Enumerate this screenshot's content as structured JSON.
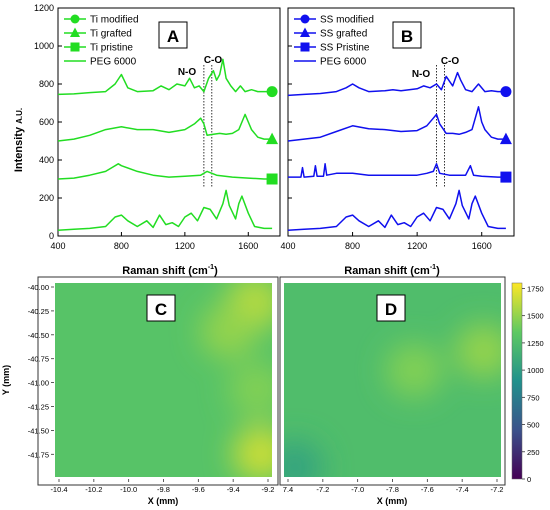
{
  "chart_data": [
    {
      "panel": "A",
      "type": "line",
      "ylabel": "Intensity",
      "ylabel_unit": "A.U.",
      "xlabel": "Raman shift (cm",
      "xlabel_sup": "-1",
      "xlabel_close": ")",
      "xlim": [
        400,
        1800
      ],
      "ylim": [
        0,
        1200
      ],
      "xticks": [
        "400",
        "800",
        "1200",
        "1600"
      ],
      "yticks": [
        "0",
        "200",
        "400",
        "600",
        "800",
        "1000",
        "1200"
      ],
      "color": "#22dd22",
      "annotations": [
        "N-O",
        "C-O"
      ],
      "vlines": [
        1320,
        1370
      ],
      "legend_position": "top-left",
      "series": [
        {
          "name": "Ti modified",
          "marker": "circle",
          "x": [
            400,
            500,
            600,
            700,
            760,
            800,
            840,
            900,
            1000,
            1050,
            1100,
            1150,
            1200,
            1230,
            1260,
            1290,
            1320,
            1350,
            1380,
            1400,
            1420,
            1440,
            1460,
            1490,
            1520,
            1550,
            1580,
            1620,
            1660,
            1700,
            1750
          ],
          "y": [
            745,
            748,
            755,
            760,
            800,
            850,
            780,
            760,
            765,
            790,
            770,
            800,
            790,
            830,
            780,
            790,
            760,
            830,
            870,
            820,
            850,
            930,
            830,
            790,
            760,
            790,
            760,
            770,
            760,
            760,
            760
          ]
        },
        {
          "name": "Ti grafted",
          "marker": "triangle",
          "x": [
            400,
            500,
            600,
            700,
            800,
            900,
            1000,
            1100,
            1200,
            1260,
            1300,
            1320,
            1340,
            1380,
            1420,
            1460,
            1500,
            1540,
            1580,
            1600,
            1620,
            1660,
            1700,
            1750
          ],
          "y": [
            500,
            510,
            530,
            560,
            575,
            560,
            560,
            545,
            560,
            590,
            620,
            590,
            530,
            535,
            540,
            535,
            540,
            560,
            640,
            600,
            560,
            520,
            510,
            510
          ]
        },
        {
          "name": "Ti pristine",
          "marker": "square",
          "x": [
            400,
            500,
            600,
            700,
            740,
            780,
            800,
            900,
            1000,
            1100,
            1200,
            1300,
            1340,
            1400,
            1500,
            1600,
            1700,
            1750
          ],
          "y": [
            300,
            305,
            320,
            340,
            360,
            380,
            370,
            340,
            320,
            310,
            315,
            320,
            340,
            320,
            310,
            305,
            300,
            300
          ]
        },
        {
          "name": "PEG 6000",
          "marker": "none",
          "x": [
            400,
            500,
            600,
            700,
            760,
            800,
            840,
            900,
            960,
            1000,
            1040,
            1080,
            1120,
            1160,
            1200,
            1240,
            1280,
            1320,
            1360,
            1400,
            1440,
            1460,
            1480,
            1520,
            1540,
            1560,
            1600,
            1640,
            1700,
            1750
          ],
          "y": [
            30,
            35,
            40,
            50,
            100,
            110,
            80,
            50,
            80,
            45,
            110,
            60,
            70,
            50,
            100,
            120,
            80,
            150,
            140,
            90,
            170,
            240,
            160,
            90,
            170,
            210,
            120,
            50,
            40,
            40
          ]
        }
      ]
    },
    {
      "panel": "B",
      "type": "line",
      "xlabel": "Raman shift (cm",
      "xlabel_sup": "-1",
      "xlabel_close": ")",
      "xlim": [
        400,
        1800
      ],
      "ylim": [
        0,
        1200
      ],
      "xticks": [
        "400",
        "800",
        "1200",
        "1600"
      ],
      "color": "#1010ee",
      "annotations": [
        "N-O",
        "C-O"
      ],
      "vlines": [
        1320,
        1370
      ],
      "legend_position": "top-left",
      "series": [
        {
          "name": "SS modified",
          "marker": "circle",
          "x": [
            400,
            500,
            600,
            700,
            760,
            800,
            840,
            900,
            1000,
            1050,
            1100,
            1150,
            1200,
            1240,
            1280,
            1320,
            1350,
            1380,
            1420,
            1450,
            1470,
            1500,
            1540,
            1580,
            1620,
            1660,
            1700,
            1750
          ],
          "y": [
            740,
            745,
            750,
            760,
            780,
            800,
            780,
            760,
            765,
            770,
            765,
            770,
            775,
            790,
            780,
            800,
            770,
            840,
            790,
            860,
            820,
            770,
            760,
            800,
            760,
            765,
            760,
            760
          ]
        },
        {
          "name": "SS grafted",
          "marker": "triangle",
          "x": [
            400,
            500,
            600,
            700,
            800,
            900,
            1000,
            1100,
            1200,
            1260,
            1300,
            1320,
            1340,
            1380,
            1420,
            1460,
            1500,
            1540,
            1580,
            1600,
            1620,
            1660,
            1700,
            1750
          ],
          "y": [
            500,
            510,
            520,
            550,
            580,
            565,
            560,
            550,
            555,
            580,
            620,
            640,
            590,
            540,
            540,
            535,
            545,
            560,
            680,
            600,
            560,
            520,
            510,
            510
          ]
        },
        {
          "name": "SS Pristine",
          "marker": "square",
          "x": [
            400,
            480,
            490,
            500,
            560,
            570,
            580,
            620,
            630,
            640,
            700,
            800,
            900,
            1000,
            1100,
            1200,
            1260,
            1300,
            1320,
            1340,
            1400,
            1500,
            1530,
            1550,
            1600,
            1700,
            1750
          ],
          "y": [
            310,
            310,
            360,
            310,
            315,
            370,
            315,
            315,
            380,
            320,
            330,
            330,
            320,
            320,
            320,
            320,
            330,
            340,
            380,
            330,
            320,
            320,
            370,
            320,
            315,
            310,
            310
          ]
        },
        {
          "name": "PEG 6000",
          "marker": "none",
          "x": [
            400,
            500,
            600,
            700,
            760,
            800,
            840,
            900,
            960,
            1000,
            1040,
            1080,
            1120,
            1160,
            1200,
            1240,
            1280,
            1320,
            1360,
            1400,
            1440,
            1460,
            1480,
            1520,
            1540,
            1560,
            1600,
            1640,
            1700,
            1750
          ],
          "y": [
            30,
            35,
            40,
            50,
            100,
            110,
            80,
            50,
            80,
            45,
            110,
            60,
            70,
            50,
            100,
            120,
            80,
            150,
            140,
            90,
            170,
            240,
            160,
            90,
            170,
            210,
            120,
            50,
            40,
            40
          ]
        }
      ]
    },
    {
      "panel": "C",
      "type": "heatmap",
      "xlabel": "X (mm)",
      "ylabel": "Y (mm)",
      "xticks": [
        "-10.4",
        "-10.2",
        "-10.0",
        "-9.8",
        "-9.6",
        "-9.4",
        "-9.2"
      ],
      "yticks": [
        "-40.00",
        "-40.25",
        "-40.50",
        "-40.75",
        "-41.00",
        "-41.25",
        "-41.50",
        "-41.75"
      ],
      "base_value": 1300,
      "hot_spots": [
        {
          "x": 0.92,
          "y": 0.1,
          "value": 1600
        },
        {
          "x": 0.8,
          "y": 0.25,
          "value": 1500
        },
        {
          "x": 0.93,
          "y": 0.55,
          "value": 1450
        },
        {
          "x": 0.95,
          "y": 0.88,
          "value": 1650
        }
      ]
    },
    {
      "panel": "D",
      "type": "heatmap",
      "xlabel": "X (mm)",
      "xticks": [
        "7.4",
        "-7.2",
        "-7.0",
        "-7.8",
        "-7.6",
        "-7.4",
        "-7.2"
      ],
      "base_value": 1250,
      "hot_spots": [
        {
          "x": 0.92,
          "y": 0.35,
          "value": 1500
        },
        {
          "x": 0.6,
          "y": 0.45,
          "value": 1450
        },
        {
          "x": 0.05,
          "y": 0.95,
          "value": 1050
        }
      ]
    }
  ],
  "colorbar": {
    "min": 0,
    "max": 1800,
    "ticks": [
      "0",
      "250",
      "500",
      "750",
      "1000",
      "1250",
      "1500",
      "1750"
    ],
    "colors": [
      "#440154",
      "#3b528b",
      "#21918c",
      "#5ec962",
      "#fde725"
    ]
  }
}
